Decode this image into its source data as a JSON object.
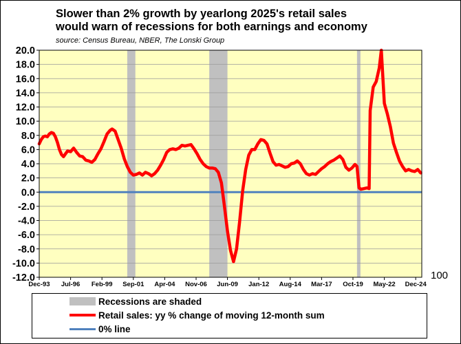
{
  "title_lines": [
    "Slower than 2% growth by yearlong 2025's retail sales",
    "would warn of recessions for both earnings and economy"
  ],
  "source": "source: Census Bureau, NBER, The Lonski Group",
  "stray_label": "100",
  "colors": {
    "plot_background": "#FFFFC0",
    "series_line": "#FF0000",
    "zero_line": "#4F81BD",
    "recession_shade": "#C0C0C0",
    "gridline": "#9A9A9A"
  },
  "legend": {
    "recessions": "Recessions are shaded",
    "series": "Retail sales: yy % change of moving 12-month sum",
    "zero": "0% line"
  },
  "chart_data": {
    "type": "line",
    "title": "Slower than 2% growth by yearlong 2025's retail sales would warn of recessions for both earnings and economy",
    "xlabel": "",
    "ylabel": "",
    "x_range": [
      "1993-12",
      "2025-06"
    ],
    "ylim": [
      -12,
      20
    ],
    "yticks": [
      "20.0",
      "18.0",
      "16.0",
      "14.0",
      "12.0",
      "10.0",
      "8.0",
      "6.0",
      "4.0",
      "2.0",
      "0.0",
      "-2.0",
      "-4.0",
      "-6.0",
      "-8.0",
      "-10.0",
      "-12.0"
    ],
    "xticks": [
      {
        "date": "1993-12",
        "label": "Dec-93"
      },
      {
        "date": "1996-07",
        "label": "Jul-96"
      },
      {
        "date": "1999-02",
        "label": "Feb-99"
      },
      {
        "date": "2001-09",
        "label": "Sep-01"
      },
      {
        "date": "2004-04",
        "label": "Apr-04"
      },
      {
        "date": "2006-11",
        "label": "Nov-06"
      },
      {
        "date": "2009-06",
        "label": "Jun-09"
      },
      {
        "date": "2012-01",
        "label": "Jan-12"
      },
      {
        "date": "2014-08",
        "label": "Aug-14"
      },
      {
        "date": "2017-03",
        "label": "Mar-17"
      },
      {
        "date": "2019-10",
        "label": "Oct-19"
      },
      {
        "date": "2022-05",
        "label": "May-22"
      },
      {
        "date": "2024-12",
        "label": "Dec-24"
      }
    ],
    "grid": "horizontal",
    "legend_position": "bottom",
    "recessions": [
      {
        "start": "2001-03",
        "end": "2001-11"
      },
      {
        "start": "2007-12",
        "end": "2009-06"
      },
      {
        "start": "2020-02",
        "end": "2020-04"
      }
    ],
    "reference_line": {
      "y": 0,
      "name": "0% line"
    },
    "series": [
      {
        "name": "Retail sales: yy % change of moving 12-month sum",
        "points": [
          [
            "1993-12",
            6.8
          ],
          [
            "1994-02",
            7.4
          ],
          [
            "1994-04",
            7.8
          ],
          [
            "1994-06",
            7.9
          ],
          [
            "1994-08",
            7.8
          ],
          [
            "1994-10",
            8.2
          ],
          [
            "1994-12",
            8.4
          ],
          [
            "1995-02",
            8.3
          ],
          [
            "1995-04",
            7.8
          ],
          [
            "1995-06",
            7.0
          ],
          [
            "1995-08",
            6.0
          ],
          [
            "1995-10",
            5.3
          ],
          [
            "1995-12",
            5.0
          ],
          [
            "1996-02",
            5.4
          ],
          [
            "1996-04",
            5.8
          ],
          [
            "1996-07",
            5.7
          ],
          [
            "1996-10",
            6.2
          ],
          [
            "1997-01",
            5.6
          ],
          [
            "1997-04",
            5.1
          ],
          [
            "1997-07",
            5.0
          ],
          [
            "1997-10",
            4.5
          ],
          [
            "1998-01",
            4.4
          ],
          [
            "1998-04",
            4.2
          ],
          [
            "1998-07",
            4.6
          ],
          [
            "1998-10",
            5.4
          ],
          [
            "1999-01",
            6.1
          ],
          [
            "1999-04",
            7.1
          ],
          [
            "1999-07",
            8.2
          ],
          [
            "1999-10",
            8.7
          ],
          [
            "1999-12",
            8.9
          ],
          [
            "2000-03",
            8.6
          ],
          [
            "2000-06",
            7.4
          ],
          [
            "2000-09",
            6.2
          ],
          [
            "2000-12",
            4.7
          ],
          [
            "2001-03",
            3.6
          ],
          [
            "2001-06",
            2.8
          ],
          [
            "2001-09",
            2.4
          ],
          [
            "2001-12",
            2.5
          ],
          [
            "2002-03",
            2.7
          ],
          [
            "2002-06",
            2.4
          ],
          [
            "2002-09",
            2.8
          ],
          [
            "2002-12",
            2.6
          ],
          [
            "2003-03",
            2.3
          ],
          [
            "2003-06",
            2.6
          ],
          [
            "2003-09",
            3.1
          ],
          [
            "2003-12",
            3.8
          ],
          [
            "2004-03",
            4.6
          ],
          [
            "2004-06",
            5.6
          ],
          [
            "2004-09",
            6.0
          ],
          [
            "2004-12",
            6.1
          ],
          [
            "2005-03",
            6.0
          ],
          [
            "2005-06",
            6.2
          ],
          [
            "2005-09",
            6.6
          ],
          [
            "2005-12",
            6.5
          ],
          [
            "2006-03",
            6.6
          ],
          [
            "2006-06",
            6.7
          ],
          [
            "2006-09",
            6.1
          ],
          [
            "2006-12",
            5.4
          ],
          [
            "2007-03",
            4.6
          ],
          [
            "2007-06",
            4.0
          ],
          [
            "2007-09",
            3.6
          ],
          [
            "2007-12",
            3.4
          ],
          [
            "2008-03",
            3.4
          ],
          [
            "2008-06",
            3.3
          ],
          [
            "2008-09",
            2.8
          ],
          [
            "2008-12",
            1.3
          ],
          [
            "2009-03",
            -2.0
          ],
          [
            "2009-06",
            -5.5
          ],
          [
            "2009-09",
            -8.2
          ],
          [
            "2009-12",
            -9.8
          ],
          [
            "2010-03",
            -8.0
          ],
          [
            "2010-06",
            -4.2
          ],
          [
            "2010-09",
            0.2
          ],
          [
            "2010-12",
            3.2
          ],
          [
            "2011-03",
            5.2
          ],
          [
            "2011-06",
            6.0
          ],
          [
            "2011-09",
            6.0
          ],
          [
            "2011-12",
            6.8
          ],
          [
            "2012-03",
            7.4
          ],
          [
            "2012-06",
            7.3
          ],
          [
            "2012-09",
            6.8
          ],
          [
            "2012-12",
            5.5
          ],
          [
            "2013-03",
            4.3
          ],
          [
            "2013-06",
            3.8
          ],
          [
            "2013-09",
            3.9
          ],
          [
            "2013-12",
            3.7
          ],
          [
            "2014-03",
            3.5
          ],
          [
            "2014-06",
            3.6
          ],
          [
            "2014-09",
            4.0
          ],
          [
            "2014-12",
            4.1
          ],
          [
            "2015-03",
            4.4
          ],
          [
            "2015-06",
            4.0
          ],
          [
            "2015-09",
            3.2
          ],
          [
            "2015-12",
            2.6
          ],
          [
            "2016-03",
            2.4
          ],
          [
            "2016-06",
            2.6
          ],
          [
            "2016-09",
            2.5
          ],
          [
            "2016-12",
            2.9
          ],
          [
            "2017-03",
            3.3
          ],
          [
            "2017-06",
            3.6
          ],
          [
            "2017-09",
            4.0
          ],
          [
            "2017-12",
            4.3
          ],
          [
            "2018-03",
            4.5
          ],
          [
            "2018-06",
            4.8
          ],
          [
            "2018-09",
            5.1
          ],
          [
            "2018-12",
            4.6
          ],
          [
            "2019-03",
            3.5
          ],
          [
            "2019-06",
            3.1
          ],
          [
            "2019-09",
            3.4
          ],
          [
            "2019-12",
            3.9
          ],
          [
            "2020-02",
            3.6
          ],
          [
            "2020-04",
            0.6
          ],
          [
            "2020-06",
            0.4
          ],
          [
            "2020-09",
            0.5
          ],
          [
            "2020-12",
            0.6
          ],
          [
            "2021-02",
            0.5
          ],
          [
            "2021-03",
            11.5
          ],
          [
            "2021-06",
            14.8
          ],
          [
            "2021-09",
            15.6
          ],
          [
            "2021-12",
            17.5
          ],
          [
            "2022-02",
            20.0
          ],
          [
            "2022-05",
            12.5
          ],
          [
            "2022-08",
            11.0
          ],
          [
            "2022-11",
            9.2
          ],
          [
            "2023-02",
            6.9
          ],
          [
            "2023-05",
            5.6
          ],
          [
            "2023-08",
            4.4
          ],
          [
            "2023-11",
            3.6
          ],
          [
            "2024-02",
            3.0
          ],
          [
            "2024-05",
            3.2
          ],
          [
            "2024-08",
            3.0
          ],
          [
            "2024-11",
            2.9
          ],
          [
            "2025-02",
            3.2
          ],
          [
            "2025-05",
            2.7
          ]
        ]
      }
    ]
  }
}
